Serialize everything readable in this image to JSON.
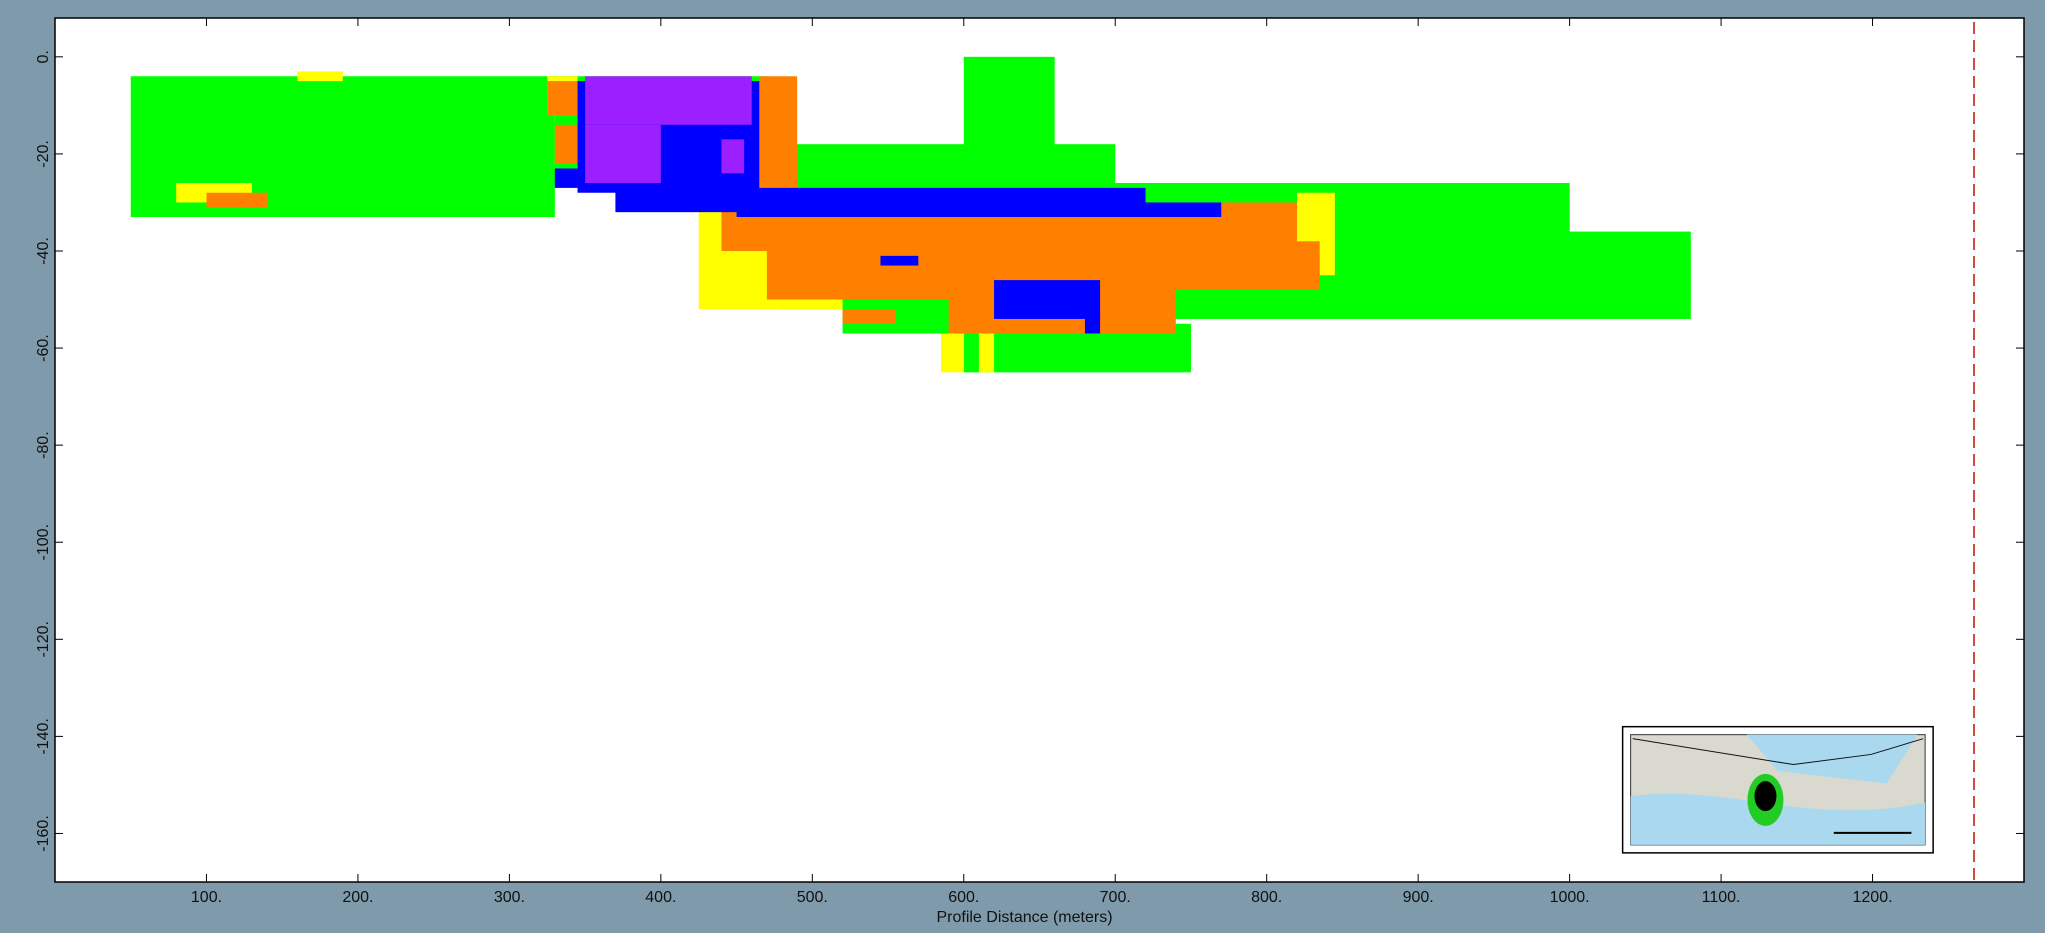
{
  "chart_data": {
    "type": "heatmap",
    "title": "",
    "xlabel": "Profile Distance (meters)",
    "ylabel": "",
    "xlim": [
      0,
      1300
    ],
    "ylim": [
      -170,
      8
    ],
    "x_ticks": [
      "100.",
      "200.",
      "300.",
      "400.",
      "500.",
      "600.",
      "700.",
      "800.",
      "900.",
      "1000.",
      "1100.",
      "1200."
    ],
    "x_tick_values": [
      100,
      200,
      300,
      400,
      500,
      600,
      700,
      800,
      900,
      1000,
      1100,
      1200
    ],
    "y_ticks": [
      "0.",
      "-20.",
      "-40.",
      "-60.",
      "-80.",
      "-100.",
      "-120.",
      "-140.",
      "-160."
    ],
    "y_tick_values": [
      0,
      -20,
      -40,
      -60,
      -80,
      -100,
      -120,
      -140,
      -160
    ],
    "grid": false,
    "legend": "none",
    "class_colors": {
      "green": "#00ff00",
      "yellow": "#ffff00",
      "orange": "#ff8000",
      "blue": "#0000ff",
      "purple": "#9b1fff"
    },
    "reference_line": {
      "x": 1267,
      "style": "dashed",
      "color": "#d04a3a"
    },
    "inset_map": {
      "x_range": [
        1035,
        1240
      ],
      "y_range": [
        -138,
        -164
      ]
    },
    "regions": [
      {
        "class": "green",
        "x": [
          50,
          330
        ],
        "y": [
          -4,
          -33
        ]
      },
      {
        "class": "green",
        "x": [
          330,
          470
        ],
        "y": [
          -4,
          -26
        ]
      },
      {
        "class": "green",
        "x": [
          440,
          700
        ],
        "y": [
          -18,
          -40
        ]
      },
      {
        "class": "green",
        "x": [
          600,
          660
        ],
        "y": [
          0,
          -30
        ]
      },
      {
        "class": "green",
        "x": [
          660,
          1000
        ],
        "y": [
          -26,
          -50
        ]
      },
      {
        "class": "green",
        "x": [
          800,
          1000
        ],
        "y": [
          -30,
          -48
        ]
      },
      {
        "class": "green",
        "x": [
          480,
          560
        ],
        "y": [
          -45,
          -52
        ]
      },
      {
        "class": "green",
        "x": [
          520,
          1080
        ],
        "y": [
          -36,
          -54
        ]
      },
      {
        "class": "green",
        "x": [
          520,
          650
        ],
        "y": [
          -52,
          -57
        ]
      },
      {
        "class": "green",
        "x": [
          600,
          750
        ],
        "y": [
          -55,
          -65
        ]
      },
      {
        "class": "yellow",
        "x": [
          80,
          130
        ],
        "y": [
          -26,
          -30
        ]
      },
      {
        "class": "yellow",
        "x": [
          160,
          190
        ],
        "y": [
          -3,
          -5
        ]
      },
      {
        "class": "yellow",
        "x": [
          325,
          345
        ],
        "y": [
          -4,
          -12
        ]
      },
      {
        "class": "yellow",
        "x": [
          425,
          520
        ],
        "y": [
          -30,
          -52
        ]
      },
      {
        "class": "yellow",
        "x": [
          555,
          610
        ],
        "y": [
          -28,
          -45
        ]
      },
      {
        "class": "yellow",
        "x": [
          820,
          845
        ],
        "y": [
          -28,
          -45
        ]
      },
      {
        "class": "yellow",
        "x": [
          585,
          600
        ],
        "y": [
          -57,
          -65
        ]
      },
      {
        "class": "yellow",
        "x": [
          610,
          620
        ],
        "y": [
          -57,
          -65
        ]
      },
      {
        "class": "orange",
        "x": [
          100,
          140
        ],
        "y": [
          -28,
          -31
        ]
      },
      {
        "class": "orange",
        "x": [
          325,
          350
        ],
        "y": [
          -5,
          -12
        ]
      },
      {
        "class": "orange",
        "x": [
          330,
          350
        ],
        "y": [
          -14,
          -22
        ]
      },
      {
        "class": "orange",
        "x": [
          465,
          490
        ],
        "y": [
          -4,
          -28
        ]
      },
      {
        "class": "orange",
        "x": [
          440,
          820
        ],
        "y": [
          -30,
          -40
        ]
      },
      {
        "class": "orange",
        "x": [
          470,
          610
        ],
        "y": [
          -36,
          -50
        ]
      },
      {
        "class": "orange",
        "x": [
          590,
          740
        ],
        "y": [
          -40,
          -57
        ]
      },
      {
        "class": "orange",
        "x": [
          700,
          835
        ],
        "y": [
          -38,
          -48
        ]
      },
      {
        "class": "orange",
        "x": [
          520,
          555
        ],
        "y": [
          -52,
          -55
        ]
      },
      {
        "class": "blue",
        "x": [
          330,
          345
        ],
        "y": [
          -23,
          -27
        ]
      },
      {
        "class": "blue",
        "x": [
          345,
          465
        ],
        "y": [
          -5,
          -28
        ]
      },
      {
        "class": "blue",
        "x": [
          370,
          720
        ],
        "y": [
          -27,
          -32
        ]
      },
      {
        "class": "blue",
        "x": [
          450,
          770
        ],
        "y": [
          -30,
          -33
        ]
      },
      {
        "class": "blue",
        "x": [
          545,
          570
        ],
        "y": [
          -41,
          -43
        ]
      },
      {
        "class": "blue",
        "x": [
          620,
          690
        ],
        "y": [
          -46,
          -54
        ]
      },
      {
        "class": "blue",
        "x": [
          680,
          690
        ],
        "y": [
          -52,
          -57
        ]
      },
      {
        "class": "purple",
        "x": [
          350,
          460
        ],
        "y": [
          -4,
          -14
        ]
      },
      {
        "class": "purple",
        "x": [
          350,
          400
        ],
        "y": [
          -14,
          -26
        ]
      },
      {
        "class": "purple",
        "x": [
          440,
          455
        ],
        "y": [
          -17,
          -24
        ]
      }
    ]
  }
}
